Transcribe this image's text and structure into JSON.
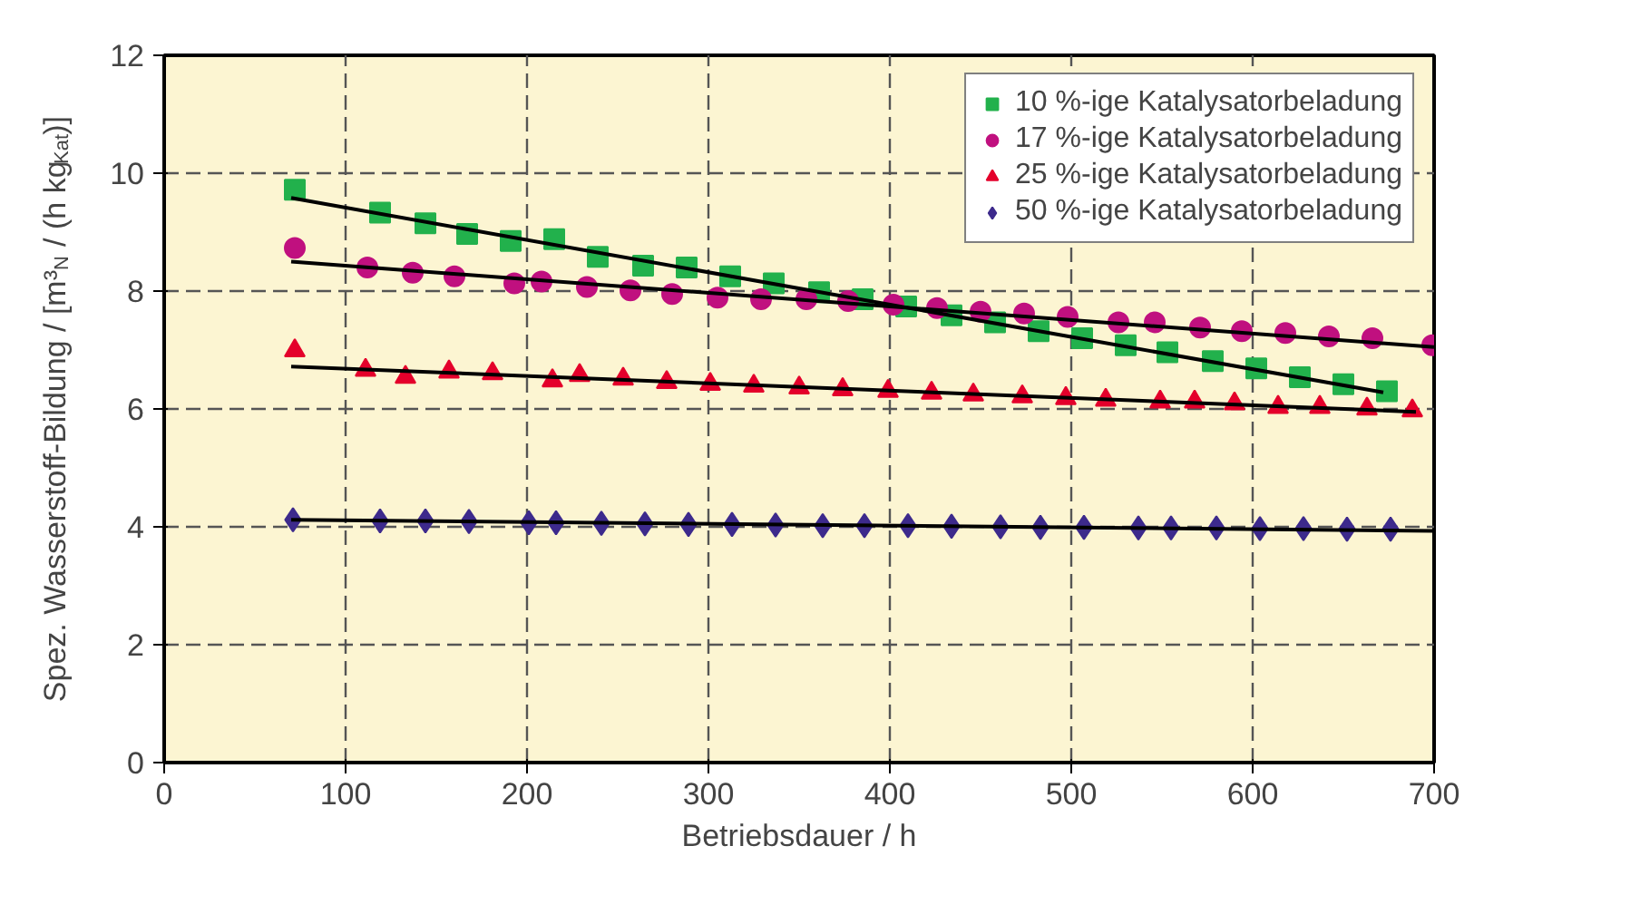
{
  "chart_data": {
    "type": "scatter",
    "xlabel": "Betriebsdauer / h",
    "ylabel": "Spez. Wasserstoff-Bildung / [m³$_{N}$ / (h kg$_{Kat}$)]",
    "xlim": [
      0,
      700
    ],
    "xticks": [
      0,
      100,
      200,
      300,
      400,
      500,
      600,
      700
    ],
    "ylim": [
      0,
      12
    ],
    "yticks": [
      0,
      2,
      4,
      6,
      8,
      10,
      12
    ],
    "grid": true,
    "legend": "top right",
    "series": [
      {
        "name": "10 %-ige Katalysatorbeladung",
        "color": "#22b14c",
        "marker": "square",
        "x": [
          72,
          119,
          144,
          167,
          191,
          215,
          239,
          264,
          288,
          312,
          336,
          361,
          385,
          409,
          434,
          458,
          482,
          506,
          530,
          553,
          578,
          602,
          626,
          650,
          674
        ],
        "values": [
          9.72,
          9.33,
          9.15,
          8.97,
          8.85,
          8.88,
          8.58,
          8.43,
          8.4,
          8.25,
          8.13,
          7.98,
          7.86,
          7.74,
          7.59,
          7.47,
          7.32,
          7.2,
          7.08,
          6.96,
          6.81,
          6.69,
          6.54,
          6.42,
          6.3
        ]
      },
      {
        "name": "17 %-ige Katalysatorbeladung",
        "color": "#c0107f",
        "marker": "circle",
        "x": [
          72,
          112,
          137,
          160,
          193,
          208,
          233,
          257,
          280,
          305,
          329,
          354,
          377,
          402,
          426,
          450,
          474,
          498,
          526,
          546,
          571,
          594,
          618,
          642,
          666,
          699
        ],
        "values": [
          8.73,
          8.4,
          8.31,
          8.25,
          8.13,
          8.16,
          8.07,
          8.01,
          7.95,
          7.89,
          7.86,
          7.86,
          7.83,
          7.77,
          7.71,
          7.65,
          7.62,
          7.56,
          7.47,
          7.47,
          7.38,
          7.32,
          7.29,
          7.23,
          7.2,
          7.08
        ]
      },
      {
        "name": "25 %-ige Katalysatorbeladung",
        "color": "#e4002b",
        "marker": "triangle",
        "x": [
          72,
          111,
          133,
          157,
          181,
          214,
          229,
          253,
          277,
          301,
          325,
          350,
          374,
          399,
          423,
          446,
          473,
          497,
          519,
          549,
          568,
          590,
          614,
          637,
          663,
          688
        ],
        "values": [
          6.99,
          6.66,
          6.54,
          6.63,
          6.6,
          6.48,
          6.57,
          6.51,
          6.45,
          6.42,
          6.39,
          6.36,
          6.33,
          6.3,
          6.27,
          6.24,
          6.21,
          6.18,
          6.15,
          6.12,
          6.12,
          6.09,
          6.03,
          6.03,
          6.0,
          5.97
        ]
      },
      {
        "name": "50 %-ige Katalysatorbeladung",
        "color": "#3d2a8c",
        "marker": "diamond",
        "x": [
          71,
          119,
          144,
          168,
          201,
          216,
          241,
          265,
          289,
          313,
          337,
          363,
          386,
          410,
          434,
          461,
          483,
          507,
          537,
          555,
          580,
          604,
          628,
          652,
          676
        ],
        "values": [
          4.12,
          4.1,
          4.1,
          4.09,
          4.07,
          4.07,
          4.06,
          4.05,
          4.04,
          4.04,
          4.03,
          4.02,
          4.02,
          4.02,
          4.01,
          4.0,
          3.99,
          3.99,
          3.98,
          3.98,
          3.98,
          3.97,
          3.97,
          3.96,
          3.96
        ]
      },
      {
        "type": "line",
        "color": "#000000",
        "marker": "none",
        "x": [
          70,
          672
        ],
        "values": [
          9.58,
          6.28
        ]
      },
      {
        "type": "line",
        "color": "#000000",
        "marker": "none",
        "x": [
          70,
          700
        ],
        "values": [
          8.5,
          7.05
        ]
      },
      {
        "type": "line",
        "color": "#000000",
        "marker": "none",
        "x": [
          70,
          690
        ],
        "values": [
          6.72,
          5.95
        ]
      },
      {
        "type": "line",
        "color": "#000000",
        "marker": "none",
        "x": [
          70,
          700
        ],
        "values": [
          4.12,
          3.93
        ]
      }
    ]
  }
}
